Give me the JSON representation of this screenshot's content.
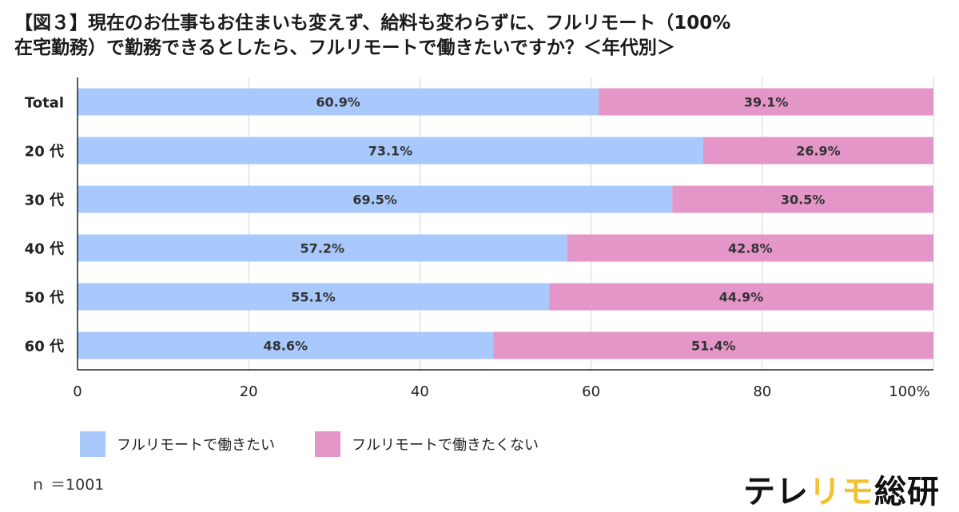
{
  "title_lines": [
    "【図３】現在のお仕事もお住まいも変えず、給料も変わらずに、フルリモート（100%",
    "在宅勤務）で勤務できるとしたら、フルリモートで働きたいですか？＜年代別＞"
  ],
  "legend": [
    {
      "label": "フルリモートで働きたい",
      "color": "#a9c8fb"
    },
    {
      "label": "フルリモートで働きたくない",
      "color": "#e496c8"
    }
  ],
  "sample_size": "ｎ ＝1001",
  "brand": {
    "part1": "テレ",
    "part2": "リモ",
    "part3": "総研",
    "accent_color": "#f2c230"
  },
  "chart_data": {
    "type": "bar",
    "orientation": "horizontal",
    "stacked": true,
    "categories": [
      "Total",
      "20 代",
      "30 代",
      "40 代",
      "50 代",
      "60 代"
    ],
    "series": [
      {
        "name": "フルリモートで働きたい",
        "values": [
          60.9,
          73.1,
          69.5,
          57.2,
          55.1,
          48.6
        ],
        "labels": [
          "60.9%",
          "73.1%",
          "69.5%",
          "57.2%",
          "55.1%",
          "48.6%"
        ],
        "color": "#a9c8fb"
      },
      {
        "name": "フルリモートで働きたくない",
        "values": [
          39.1,
          26.9,
          30.5,
          42.8,
          44.9,
          51.4
        ],
        "labels": [
          "39.1%",
          "26.9%",
          "30.5%",
          "42.8%",
          "44.9%",
          "51.4%"
        ],
        "color": "#e496c8"
      }
    ],
    "xlim": [
      0,
      100
    ],
    "xticks": [
      "0",
      "20",
      "40",
      "60",
      "80",
      "100%"
    ],
    "xtick_values": [
      0,
      20,
      40,
      60,
      80,
      100
    ],
    "grid": "vertical"
  }
}
